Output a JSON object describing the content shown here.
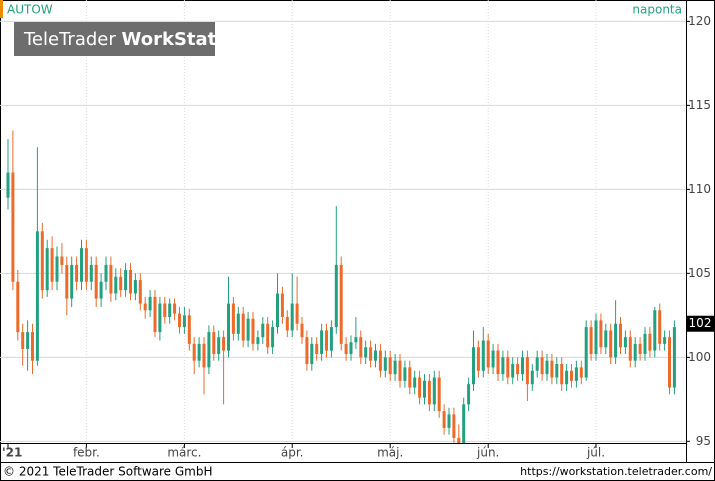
{
  "chart_data": {
    "type": "candlestick",
    "ticker": "AUTOW",
    "interval": "naponta",
    "watermark": {
      "light": "TeleTrader",
      "bold": "WorkStation"
    },
    "footer_left": "© 2021 TeleTrader Software GmbH",
    "footer_right": "https://workstation.teletrader.com/",
    "last_price": 102,
    "up_color": "#23a07f",
    "down_color": "#ec6a2a",
    "grid": true,
    "ylim": [
      94.9,
      120.2
    ],
    "yticks": [
      95,
      100,
      105,
      110,
      115,
      120
    ],
    "categories": [
      "'21",
      null,
      null,
      null,
      null,
      null,
      null,
      null,
      null,
      null,
      null,
      null,
      null,
      null,
      null,
      null,
      "febr.",
      null,
      null,
      null,
      null,
      null,
      null,
      null,
      null,
      null,
      null,
      null,
      null,
      null,
      null,
      null,
      null,
      null,
      null,
      null,
      "márc.",
      null,
      null,
      null,
      null,
      null,
      null,
      null,
      null,
      null,
      null,
      null,
      null,
      null,
      null,
      null,
      null,
      null,
      null,
      null,
      null,
      null,
      "ápr.",
      null,
      null,
      null,
      null,
      null,
      null,
      null,
      null,
      null,
      null,
      null,
      null,
      null,
      null,
      null,
      null,
      null,
      null,
      null,
      "máj.",
      null,
      null,
      null,
      null,
      null,
      null,
      null,
      null,
      null,
      null,
      null,
      null,
      null,
      null,
      null,
      null,
      null,
      null,
      null,
      "jún.",
      null,
      null,
      null,
      null,
      null,
      null,
      null,
      null,
      null,
      null,
      null,
      null,
      null,
      null,
      null,
      null,
      null,
      null,
      null,
      null,
      null,
      "júl.",
      null,
      null,
      null,
      null,
      null,
      null,
      null,
      null,
      null,
      null,
      null,
      null,
      null,
      null,
      null,
      null
    ],
    "candles": [
      [
        109.5,
        113,
        108.8,
        111
      ],
      [
        111,
        113.5,
        104,
        104.5
      ],
      [
        104.5,
        105.2,
        101,
        101.5
      ],
      [
        101.5,
        102,
        99.5,
        100.5
      ],
      [
        100.5,
        102.2,
        99.2,
        101.5
      ],
      [
        101.5,
        102,
        99,
        99.8
      ],
      [
        99.8,
        112.5,
        99.5,
        107.5
      ],
      [
        107.5,
        108,
        103.5,
        104
      ],
      [
        104,
        107,
        103.6,
        106.5
      ],
      [
        106.5,
        107.2,
        104,
        104.5
      ],
      [
        104.5,
        106.6,
        104,
        106
      ],
      [
        106,
        106.8,
        105,
        105.5
      ],
      [
        105.5,
        106,
        102.5,
        103.5
      ],
      [
        103.5,
        106,
        103,
        105.5
      ],
      [
        105.5,
        106,
        104,
        104.5
      ],
      [
        104.5,
        107,
        104,
        106.5
      ],
      [
        106.5,
        107,
        104,
        104.5
      ],
      [
        104.5,
        106,
        104,
        105.5
      ],
      [
        105.5,
        106,
        103,
        103.5
      ],
      [
        103.5,
        105,
        103,
        104.5
      ],
      [
        104.5,
        106,
        104,
        105.5
      ],
      [
        105.5,
        106,
        103.3,
        103.8
      ],
      [
        103.8,
        105.3,
        103.4,
        104.8
      ],
      [
        104.8,
        105.3,
        103.6,
        104
      ],
      [
        104,
        105.6,
        103.6,
        105.2
      ],
      [
        105.2,
        105.6,
        103.4,
        103.8
      ],
      [
        103.8,
        105,
        103.4,
        104.6
      ],
      [
        104.6,
        105,
        102.8,
        103.2
      ],
      [
        103.2,
        103.6,
        102.3,
        102.8
      ],
      [
        102.8,
        104,
        102.4,
        103.6
      ],
      [
        103.6,
        104,
        101.2,
        101.5
      ],
      [
        101.5,
        103.6,
        101,
        103.2
      ],
      [
        103.2,
        103.6,
        102,
        102.4
      ],
      [
        102.4,
        103.5,
        102,
        103.2
      ],
      [
        103.2,
        103.5,
        102.2,
        102.6
      ],
      [
        102.6,
        103,
        101.4,
        101.8
      ],
      [
        101.8,
        103,
        101.4,
        102.5
      ],
      [
        102.5,
        102.9,
        100.4,
        100.8
      ],
      [
        100.8,
        101.2,
        99,
        99.8
      ],
      [
        99.8,
        101.2,
        99.4,
        100.8
      ],
      [
        100.8,
        101.2,
        97.8,
        99.4
      ],
      [
        99.4,
        101.9,
        99,
        101.5
      ],
      [
        101.5,
        101.9,
        99.8,
        100.2
      ],
      [
        100.2,
        101.6,
        99.8,
        101.2
      ],
      [
        101.2,
        101.6,
        97.2,
        100.4
      ],
      [
        100.4,
        104.8,
        100,
        103.2
      ],
      [
        103.2,
        103.6,
        101,
        101.4
      ],
      [
        101.4,
        103,
        101,
        102.6
      ],
      [
        102.6,
        103,
        100.6,
        101
      ],
      [
        101,
        102.7,
        100.6,
        102.3
      ],
      [
        102.3,
        102.7,
        100.4,
        100.8
      ],
      [
        100.8,
        101.6,
        100.4,
        101.2
      ],
      [
        101.2,
        102.4,
        100.8,
        102
      ],
      [
        102,
        102.4,
        100.2,
        100.6
      ],
      [
        100.6,
        102.2,
        100.2,
        101.8
      ],
      [
        101.8,
        105,
        101.4,
        103.8
      ],
      [
        103.8,
        104.2,
        102,
        102.4
      ],
      [
        102.4,
        102.8,
        101.2,
        101.6
      ],
      [
        101.6,
        105,
        101.2,
        103.2
      ],
      [
        103.2,
        104.8,
        101.6,
        102
      ],
      [
        102,
        102.4,
        100.8,
        101.2
      ],
      [
        101.2,
        101.6,
        99.2,
        99.6
      ],
      [
        99.6,
        101.2,
        99.2,
        100.8
      ],
      [
        100.8,
        101.2,
        99.8,
        100.2
      ],
      [
        100.2,
        102,
        99.8,
        101.6
      ],
      [
        101.6,
        102,
        100,
        100.4
      ],
      [
        100.4,
        102.2,
        100,
        101.8
      ],
      [
        101.8,
        109,
        101.4,
        105.5
      ],
      [
        105.5,
        106,
        100.4,
        100.8
      ],
      [
        100.8,
        101.2,
        99.8,
        100.2
      ],
      [
        100.2,
        101.3,
        99.8,
        100.9
      ],
      [
        100.9,
        102.4,
        100.5,
        101.2
      ],
      [
        101.2,
        101.6,
        99.6,
        100
      ],
      [
        100,
        101,
        99.6,
        100.6
      ],
      [
        100.6,
        101,
        99.4,
        99.8
      ],
      [
        99.8,
        100.8,
        99.4,
        100.4
      ],
      [
        100.4,
        100.8,
        98.8,
        99.2
      ],
      [
        99.2,
        100.4,
        98.8,
        100
      ],
      [
        100,
        100.4,
        98.6,
        99
      ],
      [
        99,
        100.2,
        98.6,
        99.8
      ],
      [
        99.8,
        100.2,
        98.2,
        98.6
      ],
      [
        98.6,
        99.8,
        98.2,
        99.4
      ],
      [
        99.4,
        99.8,
        97.8,
        98.2
      ],
      [
        98.2,
        99.2,
        97.8,
        98.8
      ],
      [
        98.8,
        99.2,
        97.2,
        97.6
      ],
      [
        97.6,
        99,
        97.2,
        98.6
      ],
      [
        98.6,
        99,
        96.8,
        97.2
      ],
      [
        97.2,
        99.2,
        96.8,
        98.8
      ],
      [
        98.8,
        99.2,
        96.4,
        96.8
      ],
      [
        96.8,
        97.2,
        95.4,
        95.8
      ],
      [
        95.8,
        97,
        95.4,
        96.6
      ],
      [
        96.6,
        97,
        94.9,
        95.2
      ],
      [
        95.2,
        96,
        94.9,
        94.9
      ],
      [
        94.9,
        97.6,
        94.9,
        97.2
      ],
      [
        97.2,
        98.8,
        96.8,
        98.4
      ],
      [
        98.4,
        101.6,
        98,
        100.6
      ],
      [
        100.6,
        101,
        98.8,
        99.2
      ],
      [
        99.2,
        101.8,
        98.8,
        101
      ],
      [
        101,
        101.4,
        99,
        99.4
      ],
      [
        99.4,
        100.8,
        99,
        100.4
      ],
      [
        100.4,
        100.8,
        98.6,
        99
      ],
      [
        99,
        100.4,
        98.6,
        100
      ],
      [
        100,
        100.4,
        98.4,
        98.8
      ],
      [
        98.8,
        100,
        98.4,
        99.6
      ],
      [
        99.6,
        100,
        98.6,
        99
      ],
      [
        99,
        100.4,
        98.6,
        100
      ],
      [
        100,
        100.4,
        97.4,
        98.4
      ],
      [
        98.4,
        99.6,
        98,
        99.2
      ],
      [
        99.2,
        100.4,
        98.8,
        100
      ],
      [
        100,
        100.4,
        98.6,
        99
      ],
      [
        99,
        100.2,
        98.6,
        99.8
      ],
      [
        99.8,
        100.2,
        98.4,
        98.8
      ],
      [
        98.8,
        100,
        98.4,
        99.6
      ],
      [
        99.6,
        100,
        98,
        98.4
      ],
      [
        98.4,
        99.6,
        98,
        99.2
      ],
      [
        99.2,
        99.6,
        98.2,
        98.6
      ],
      [
        98.6,
        99.8,
        98.2,
        99.4
      ],
      [
        99.4,
        99.8,
        98.4,
        98.8
      ],
      [
        98.8,
        102.2,
        98.6,
        101.8
      ],
      [
        101.8,
        102.2,
        99.8,
        100.2
      ],
      [
        100.2,
        102.6,
        99.8,
        102.2
      ],
      [
        102.2,
        102.6,
        100.2,
        100.6
      ],
      [
        100.6,
        102,
        100.2,
        101.6
      ],
      [
        101.6,
        102,
        99.6,
        100
      ],
      [
        100,
        103.4,
        99.6,
        102
      ],
      [
        102,
        102.4,
        100.2,
        100.6
      ],
      [
        100.6,
        101.6,
        100.2,
        101.2
      ],
      [
        101.2,
        101.6,
        99.4,
        99.8
      ],
      [
        99.8,
        101.2,
        99.4,
        100.8
      ],
      [
        100.8,
        101.2,
        99.8,
        100.2
      ],
      [
        100.2,
        101.8,
        99.8,
        101.4
      ],
      [
        101.4,
        101.8,
        100,
        100.4
      ],
      [
        100.4,
        103,
        100,
        102.8
      ],
      [
        102.8,
        103.2,
        100.4,
        100.8
      ],
      [
        100.8,
        101.6,
        100.4,
        101.2
      ],
      [
        101.2,
        101.6,
        97.8,
        98.2
      ],
      [
        98.2,
        102.2,
        97.8,
        101.8
      ]
    ]
  }
}
